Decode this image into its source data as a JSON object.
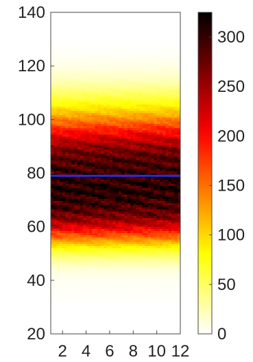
{
  "chart_data": [
    {
      "type": "heatmap",
      "title": "",
      "xlabel": "",
      "ylabel": "",
      "x_ticks": [
        2,
        4,
        6,
        8,
        10,
        12
      ],
      "x_tick_labels": [
        "2",
        "4",
        "6",
        "8",
        "10",
        "12"
      ],
      "xlim": [
        1,
        12
      ],
      "y_ticks": [
        20,
        40,
        60,
        80,
        100,
        120,
        140
      ],
      "y_tick_labels": [
        "20",
        "40",
        "60",
        "80",
        "100",
        "120",
        "140"
      ],
      "ylim": [
        20,
        140
      ],
      "colormap": "hot (reversed)",
      "colorbar": {
        "range": [
          0,
          325
        ],
        "ticks": [
          0,
          50,
          100,
          150,
          200,
          250,
          300
        ],
        "tick_labels": [
          "0",
          "50",
          "100",
          "150",
          "200",
          "250",
          "300"
        ]
      },
      "density_profile": {
        "description_free_note": "",
        "y": [
          20,
          30,
          40,
          44,
          48,
          52,
          56,
          60,
          64,
          68,
          72,
          76,
          80,
          84,
          88,
          92,
          96,
          100,
          104,
          108,
          112,
          116,
          120,
          124,
          128,
          132,
          140
        ],
        "value": [
          0,
          0,
          4,
          12,
          35,
          80,
          150,
          220,
          270,
          295,
          305,
          305,
          300,
          290,
          270,
          235,
          190,
          140,
          95,
          60,
          35,
          18,
          8,
          3,
          1,
          0,
          0
        ]
      },
      "reference_line": {
        "y": 79,
        "color": "#2a2ae0"
      },
      "grid": false
    }
  ]
}
